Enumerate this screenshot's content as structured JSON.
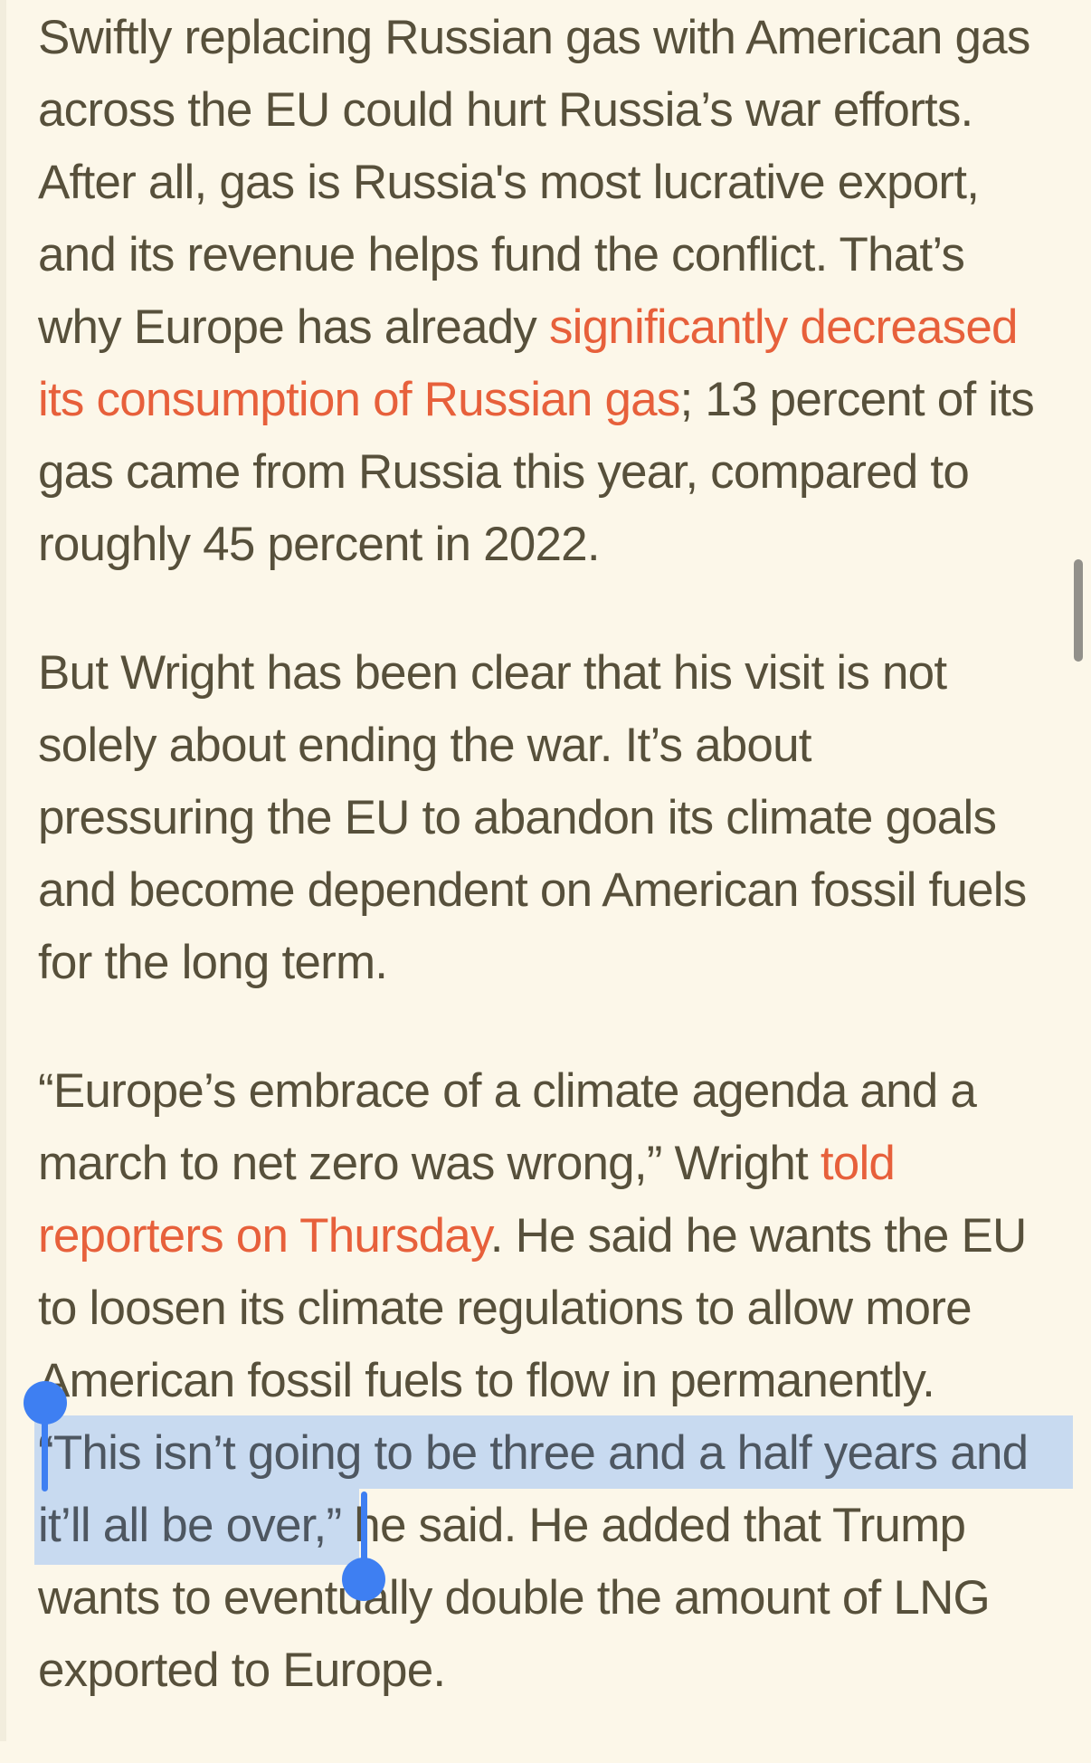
{
  "page": {
    "background": "#FCF7E9",
    "text_color": "#57503B",
    "link_color": "#E7603B",
    "selection_highlight_color": "#C8DAF0",
    "selected_text_color": "#4E5761",
    "handle_color": "#3E7FF2",
    "scrollbar_color": "#7F7E79",
    "edge_color": "#F2EDDD"
  },
  "article": {
    "paragraphs": [
      {
        "lines": [
          {
            "segments": [
              {
                "text": "Swiftly replacing Russian gas with American gas",
                "style": "normal"
              }
            ]
          },
          {
            "segments": [
              {
                "text": "across the EU could hurt Russia’s war efforts.",
                "style": "normal"
              }
            ]
          },
          {
            "segments": [
              {
                "text": "After all, gas is Russia's most lucrative export,",
                "style": "normal"
              }
            ]
          },
          {
            "segments": [
              {
                "text": "and its revenue helps fund the conflict. That’s",
                "style": "normal"
              }
            ]
          },
          {
            "segments": [
              {
                "text": "why Europe has already ",
                "style": "normal"
              },
              {
                "text": "significantly decreased",
                "style": "link"
              }
            ]
          },
          {
            "segments": [
              {
                "text": "its consumption of Russian gas",
                "style": "link"
              },
              {
                "text": "; 13 percent of its",
                "style": "normal"
              }
            ]
          },
          {
            "segments": [
              {
                "text": "gas came from Russia this year, compared to",
                "style": "normal"
              }
            ]
          },
          {
            "segments": [
              {
                "text": "roughly 45 percent in 2022.",
                "style": "normal"
              }
            ]
          }
        ]
      },
      {
        "lines": [
          {
            "segments": [
              {
                "text": "But Wright has been clear that his visit is not",
                "style": "normal"
              }
            ]
          },
          {
            "segments": [
              {
                "text": "solely about ending the war. It’s about",
                "style": "normal"
              }
            ]
          },
          {
            "segments": [
              {
                "text": "pressuring the EU to abandon its climate goals",
                "style": "normal"
              }
            ]
          },
          {
            "segments": [
              {
                "text": "and become dependent on American fossil fuels",
                "style": "normal"
              }
            ]
          },
          {
            "segments": [
              {
                "text": "for the long term.",
                "style": "normal"
              }
            ]
          }
        ]
      },
      {
        "lines": [
          {
            "segments": [
              {
                "text": "“Europe’s embrace of a climate agenda and a",
                "style": "normal"
              }
            ]
          },
          {
            "segments": [
              {
                "text": "march to net zero was wrong,” Wright ",
                "style": "normal"
              },
              {
                "text": "told",
                "style": "link"
              }
            ]
          },
          {
            "segments": [
              {
                "text": "reporters on Thursday",
                "style": "link"
              },
              {
                "text": ". He said he wants the EU",
                "style": "normal"
              }
            ]
          },
          {
            "segments": [
              {
                "text": "to loosen its climate regulations to allow more",
                "style": "normal"
              }
            ]
          },
          {
            "segments": [
              {
                "text": "American fossil fuels to flow in permanently.",
                "style": "normal"
              }
            ]
          },
          {
            "segments": [
              {
                "text": "“This isn’t going to be three and a half years and",
                "style": "selected"
              }
            ]
          },
          {
            "segments": [
              {
                "text": "it’ll all be over,” ",
                "style": "selected"
              },
              {
                "text": "he said. He added that Trump",
                "style": "normal"
              }
            ]
          },
          {
            "segments": [
              {
                "text": "wants to eventually double the amount of LNG",
                "style": "normal"
              }
            ]
          },
          {
            "segments": [
              {
                "text": "exported to Europe.",
                "style": "normal"
              }
            ]
          }
        ]
      }
    ]
  },
  "selection": {
    "selected_text": "“This isn’t going to be three and a half years and it’ll all be over,”"
  }
}
